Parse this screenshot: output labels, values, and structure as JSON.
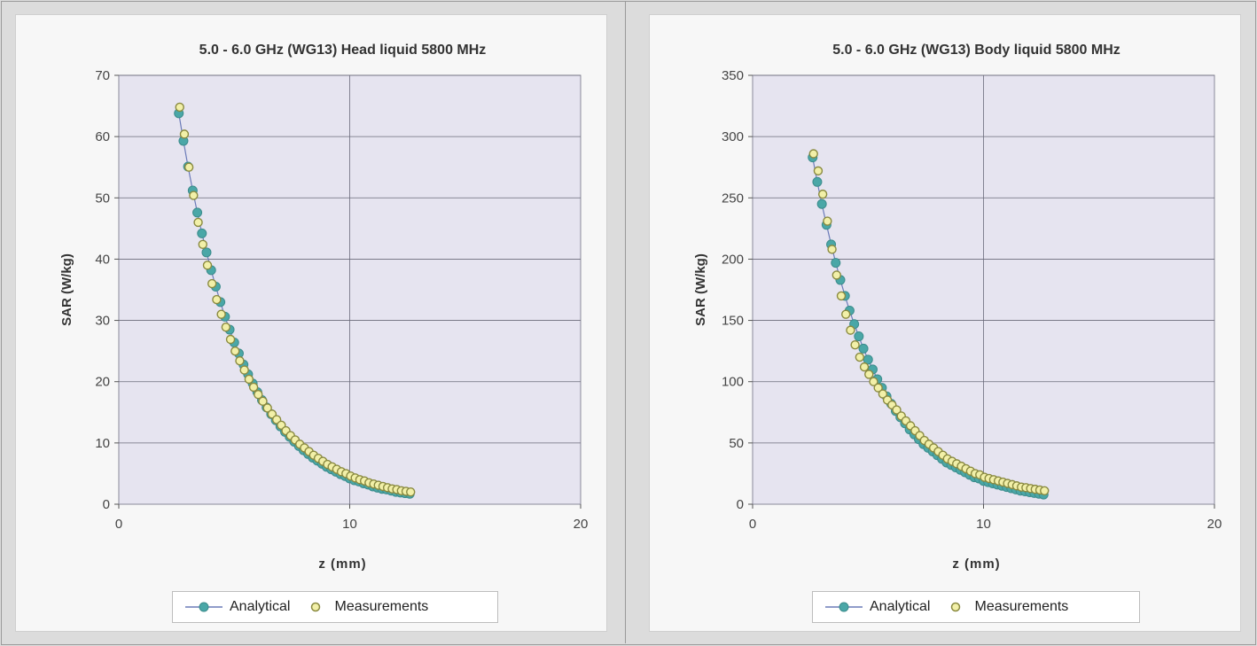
{
  "colors": {
    "plot_bg": "#e6e4f0",
    "grid": "#6a6a7a",
    "analytical": "#4aa7a7",
    "analytical_line": "#6b7bb8",
    "measurements_fill": "#f2f0a8",
    "measurements_stroke": "#8a8a40"
  },
  "chart_data": [
    {
      "type": "scatter",
      "title": "5.0 - 6.0 GHz (WG13) Head liquid 5800 MHz",
      "xlabel": "z (mm)",
      "ylabel": "SAR (W/kg)",
      "xlim": [
        0,
        20
      ],
      "ylim": [
        0,
        70
      ],
      "xticks": [
        "0",
        "10",
        "20"
      ],
      "yticks": [
        "0",
        "10",
        "20",
        "30",
        "40",
        "50",
        "60",
        "70"
      ],
      "grid": true,
      "legend_position": "bottom",
      "series": [
        {
          "name": "Analytical",
          "marker": "filled-circle-with-line",
          "x": [
            2.6,
            2.8,
            3.0,
            3.2,
            3.4,
            3.6,
            3.8,
            4.0,
            4.2,
            4.4,
            4.6,
            4.8,
            5.0,
            5.2,
            5.4,
            5.6,
            5.8,
            6.0,
            6.2,
            6.4,
            6.6,
            6.8,
            7.0,
            7.2,
            7.4,
            7.6,
            7.8,
            8.0,
            8.2,
            8.4,
            8.6,
            8.8,
            9.0,
            9.2,
            9.4,
            9.6,
            9.8,
            10.0,
            10.2,
            10.4,
            10.6,
            10.8,
            11.0,
            11.2,
            11.4,
            11.6,
            11.8,
            12.0,
            12.2,
            12.4,
            12.6
          ],
          "y": [
            63.8,
            59.3,
            55.1,
            51.2,
            47.6,
            44.2,
            41.1,
            38.2,
            35.5,
            33.0,
            30.6,
            28.5,
            26.4,
            24.6,
            22.8,
            21.2,
            19.7,
            18.3,
            17.0,
            15.8,
            14.7,
            13.7,
            12.7,
            11.8,
            11.0,
            10.2,
            9.5,
            8.8,
            8.2,
            7.6,
            7.1,
            6.6,
            6.1,
            5.7,
            5.3,
            4.9,
            4.6,
            4.2,
            3.9,
            3.7,
            3.4,
            3.2,
            2.9,
            2.7,
            2.5,
            2.4,
            2.2,
            2.0,
            1.9,
            1.8,
            1.7
          ]
        },
        {
          "name": "Measurements",
          "marker": "open-circle",
          "x": [
            2.6,
            2.8,
            3.0,
            3.2,
            3.4,
            3.6,
            3.8,
            4.0,
            4.2,
            4.4,
            4.6,
            4.8,
            5.0,
            5.2,
            5.4,
            5.6,
            5.8,
            6.0,
            6.2,
            6.4,
            6.6,
            6.8,
            7.0,
            7.2,
            7.4,
            7.6,
            7.8,
            8.0,
            8.2,
            8.4,
            8.6,
            8.8,
            9.0,
            9.2,
            9.4,
            9.6,
            9.8,
            10.0,
            10.2,
            10.4,
            10.6,
            10.8,
            11.0,
            11.2,
            11.4,
            11.6,
            11.8,
            12.0,
            12.2,
            12.4,
            12.6
          ],
          "y": [
            64.8,
            60.4,
            55.0,
            50.4,
            46.0,
            42.4,
            39.0,
            36.0,
            33.4,
            31.0,
            28.9,
            26.9,
            25.0,
            23.4,
            21.9,
            20.4,
            19.1,
            17.9,
            16.8,
            15.7,
            14.7,
            13.8,
            12.9,
            12.0,
            11.2,
            10.5,
            9.8,
            9.2,
            8.6,
            8.0,
            7.5,
            7.0,
            6.5,
            6.1,
            5.7,
            5.3,
            5.0,
            4.6,
            4.3,
            4.0,
            3.8,
            3.5,
            3.3,
            3.1,
            2.9,
            2.7,
            2.5,
            2.4,
            2.2,
            2.1,
            2.0
          ]
        }
      ]
    },
    {
      "type": "scatter",
      "title": "5.0 - 6.0 GHz (WG13) Body liquid 5800 MHz",
      "xlabel": "z (mm)",
      "ylabel": "SAR (W/kg)",
      "xlim": [
        0,
        20
      ],
      "ylim": [
        0,
        350
      ],
      "xticks": [
        "0",
        "10",
        "20"
      ],
      "yticks": [
        "0",
        "50",
        "100",
        "150",
        "200",
        "250",
        "300",
        "350"
      ],
      "grid": true,
      "legend_position": "bottom",
      "series": [
        {
          "name": "Analytical",
          "marker": "filled-circle-with-line",
          "x": [
            2.6,
            2.8,
            3.0,
            3.2,
            3.4,
            3.6,
            3.8,
            4.0,
            4.2,
            4.4,
            4.6,
            4.8,
            5.0,
            5.2,
            5.4,
            5.6,
            5.8,
            6.0,
            6.2,
            6.4,
            6.6,
            6.8,
            7.0,
            7.2,
            7.4,
            7.6,
            7.8,
            8.0,
            8.2,
            8.4,
            8.6,
            8.8,
            9.0,
            9.2,
            9.4,
            9.6,
            9.8,
            10.0,
            10.2,
            10.4,
            10.6,
            10.8,
            11.0,
            11.2,
            11.4,
            11.6,
            11.8,
            12.0,
            12.2,
            12.4,
            12.6
          ],
          "y": [
            283,
            263,
            245,
            228,
            212,
            197,
            183,
            170,
            158,
            147,
            137,
            127,
            118,
            110,
            102,
            95,
            88,
            82,
            76,
            71,
            66,
            61,
            57,
            53,
            49,
            46,
            43,
            40,
            37,
            34,
            32,
            30,
            28,
            26,
            24,
            22,
            21,
            19,
            18,
            17,
            16,
            15,
            14,
            13,
            12,
            11,
            10.5,
            9.8,
            9.1,
            8.5,
            7.9
          ]
        },
        {
          "name": "Measurements",
          "marker": "open-circle",
          "x": [
            2.6,
            2.8,
            3.0,
            3.2,
            3.4,
            3.6,
            3.8,
            4.0,
            4.2,
            4.4,
            4.6,
            4.8,
            5.0,
            5.2,
            5.4,
            5.6,
            5.8,
            6.0,
            6.2,
            6.4,
            6.6,
            6.8,
            7.0,
            7.2,
            7.4,
            7.6,
            7.8,
            8.0,
            8.2,
            8.4,
            8.6,
            8.8,
            9.0,
            9.2,
            9.4,
            9.6,
            9.8,
            10.0,
            10.2,
            10.4,
            10.6,
            10.8,
            11.0,
            11.2,
            11.4,
            11.6,
            11.8,
            12.0,
            12.2,
            12.4,
            12.6
          ],
          "y": [
            286,
            272,
            253,
            231,
            208,
            187,
            170,
            155,
            142,
            130,
            120,
            112,
            106,
            100,
            95,
            90,
            85,
            81,
            77,
            72,
            68,
            64,
            60,
            56,
            52,
            49,
            46,
            43,
            40,
            37,
            35,
            33,
            31,
            29,
            27,
            25,
            24,
            22,
            21,
            20,
            19,
            18,
            17,
            16,
            15,
            14,
            13.5,
            12.8,
            12.2,
            11.6,
            11.0
          ]
        }
      ]
    }
  ]
}
